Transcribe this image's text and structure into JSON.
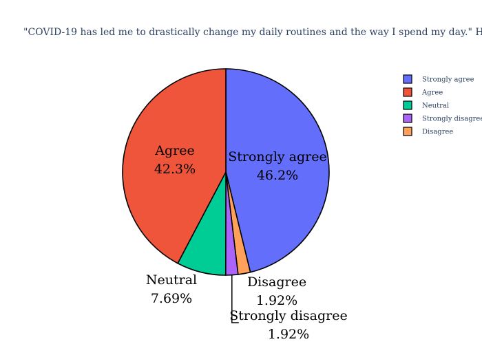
{
  "chart_data": {
    "type": "pie",
    "title": "\"COVID-19 has led me to drastically change my daily routines and the way I spend my day.\" How much do you agree",
    "slices": [
      {
        "label": "Strongly agree",
        "value": 46.2,
        "percent_text": "46.2%",
        "color": "#636efa"
      },
      {
        "label": "Disagree",
        "value": 1.92,
        "percent_text": "1.92%",
        "color": "#ffa15a"
      },
      {
        "label": "Strongly disagree",
        "value": 1.92,
        "percent_text": "1.92%",
        "color": "#ab63fa"
      },
      {
        "label": "Neutral",
        "value": 7.69,
        "percent_text": "7.69%",
        "color": "#00cc96"
      },
      {
        "label": "Agree",
        "value": 42.3,
        "percent_text": "42.3%",
        "color": "#ef553b"
      }
    ],
    "legend": {
      "placement": "top-right",
      "items": [
        {
          "label": "Strongly agree",
          "color": "#636efa"
        },
        {
          "label": "Agree",
          "color": "#ef553b"
        },
        {
          "label": "Neutral",
          "color": "#00cc96"
        },
        {
          "label": "Strongly disagree",
          "color": "#ab63fa"
        },
        {
          "label": "Disagree",
          "color": "#ffa15a"
        }
      ]
    }
  }
}
